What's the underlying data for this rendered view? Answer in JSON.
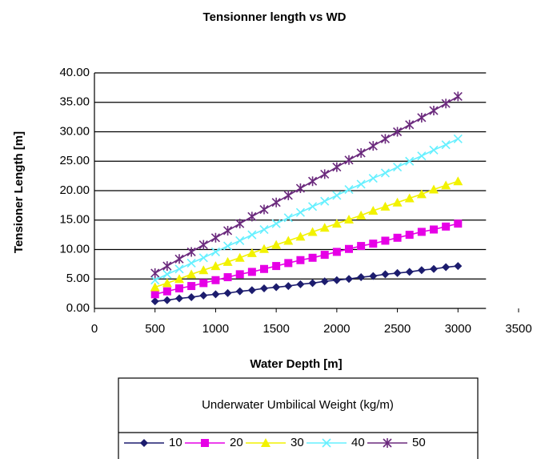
{
  "chart_data": {
    "type": "line",
    "title": "Tensionner length vs WD",
    "x_label": "Water Depth [m]",
    "y_label": "Tensioner Length [m]",
    "x": [
      500,
      600,
      700,
      800,
      900,
      1000,
      1100,
      1200,
      1300,
      1400,
      1500,
      1600,
      1700,
      1800,
      1900,
      2000,
      2100,
      2200,
      2300,
      2400,
      2500,
      2600,
      2700,
      2800,
      2900,
      3000
    ],
    "series": [
      {
        "name": "10",
        "color": "#1c1c6e",
        "marker": "diamond",
        "values": [
          1.2,
          1.4,
          1.7,
          1.9,
          2.2,
          2.4,
          2.6,
          2.9,
          3.1,
          3.4,
          3.6,
          3.8,
          4.1,
          4.3,
          4.6,
          4.8,
          5.0,
          5.3,
          5.5,
          5.8,
          6.0,
          6.2,
          6.5,
          6.7,
          7.0,
          7.2
        ]
      },
      {
        "name": "20",
        "color": "#e600e6",
        "marker": "square",
        "values": [
          2.4,
          2.9,
          3.4,
          3.8,
          4.3,
          4.8,
          5.3,
          5.8,
          6.2,
          6.7,
          7.2,
          7.7,
          8.2,
          8.6,
          9.1,
          9.6,
          10.1,
          10.6,
          11.0,
          11.5,
          12.0,
          12.5,
          13.0,
          13.4,
          13.9,
          14.4
        ]
      },
      {
        "name": "30",
        "color": "#f2f200",
        "marker": "triangle",
        "values": [
          3.6,
          4.3,
          5.0,
          5.8,
          6.5,
          7.2,
          7.9,
          8.6,
          9.4,
          10.1,
          10.8,
          11.5,
          12.2,
          13.0,
          13.7,
          14.4,
          15.1,
          15.8,
          16.6,
          17.3,
          18.0,
          18.7,
          19.4,
          20.2,
          20.9,
          21.6
        ]
      },
      {
        "name": "40",
        "color": "#66f0ff",
        "marker": "x",
        "values": [
          4.8,
          5.8,
          6.7,
          7.7,
          8.6,
          9.6,
          10.6,
          11.5,
          12.5,
          13.4,
          14.4,
          15.4,
          16.3,
          17.3,
          18.2,
          19.2,
          20.2,
          21.1,
          22.1,
          23.0,
          24.0,
          25.0,
          25.9,
          26.9,
          27.8,
          28.8
        ]
      },
      {
        "name": "50",
        "color": "#6b2a7d",
        "marker": "star",
        "values": [
          6.0,
          7.2,
          8.4,
          9.6,
          10.8,
          12.0,
          13.2,
          14.4,
          15.6,
          16.8,
          18.0,
          19.2,
          20.4,
          21.6,
          22.8,
          24.0,
          25.2,
          26.4,
          27.6,
          28.8,
          30.0,
          31.2,
          32.4,
          33.6,
          34.8,
          36.0
        ]
      }
    ],
    "xlim": [
      0,
      3500
    ],
    "xticks": [
      0,
      500,
      1000,
      1500,
      2000,
      2500,
      3000,
      3500
    ],
    "ylim": [
      0,
      40
    ],
    "yticks": [
      {
        "value": 0,
        "label": "0.00"
      },
      {
        "value": 5,
        "label": "5.00"
      },
      {
        "value": 10,
        "label": "10.00"
      },
      {
        "value": 15,
        "label": "15.00"
      },
      {
        "value": 20,
        "label": "20.00"
      },
      {
        "value": 25,
        "label": "25.00"
      },
      {
        "value": 30,
        "label": "30.00"
      },
      {
        "value": 35,
        "label": "35.00"
      },
      {
        "value": 40,
        "label": "40.00"
      }
    ],
    "grid": true,
    "legend": {
      "title": "Underwater Umbilical Weight (kg/m)",
      "position": "bottom"
    }
  }
}
